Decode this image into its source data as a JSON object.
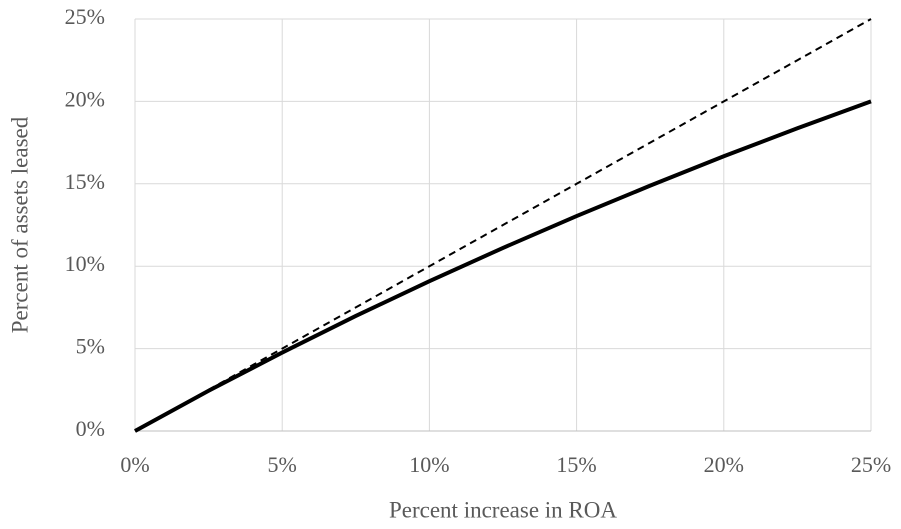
{
  "chart_data": {
    "type": "line",
    "x_label": "Percent increase in ROA",
    "y_label": "Percent of assets leased",
    "x": [
      0,
      2.5,
      5,
      7.5,
      10,
      12.5,
      15,
      17.5,
      20,
      22.5,
      25
    ],
    "series": [
      {
        "color": "#000000",
        "style": "solid",
        "values": [
          0,
          2.44,
          4.76,
          6.98,
          9.09,
          11.11,
          13.04,
          14.89,
          16.67,
          18.37,
          20
        ]
      },
      {
        "color": "#000000",
        "style": "dashed",
        "values": [
          0,
          2.5,
          5,
          7.5,
          10,
          12.5,
          15,
          17.5,
          20,
          22.5,
          25
        ]
      }
    ],
    "xlim": [
      0,
      25
    ],
    "ylim": [
      0,
      25
    ],
    "xticks": [
      {
        "value": 0,
        "label": "0%"
      },
      {
        "value": 5,
        "label": "5%"
      },
      {
        "value": 10,
        "label": "10%"
      },
      {
        "value": 15,
        "label": "15%"
      },
      {
        "value": 20,
        "label": "20%"
      },
      {
        "value": 25,
        "label": "25%"
      }
    ],
    "yticks": [
      {
        "value": 0,
        "label": "0%"
      },
      {
        "value": 5,
        "label": "5%"
      },
      {
        "value": 10,
        "label": "10%"
      },
      {
        "value": 15,
        "label": "15%"
      },
      {
        "value": 20,
        "label": "20%"
      },
      {
        "value": 25,
        "label": "25%"
      }
    ],
    "grid": true
  }
}
